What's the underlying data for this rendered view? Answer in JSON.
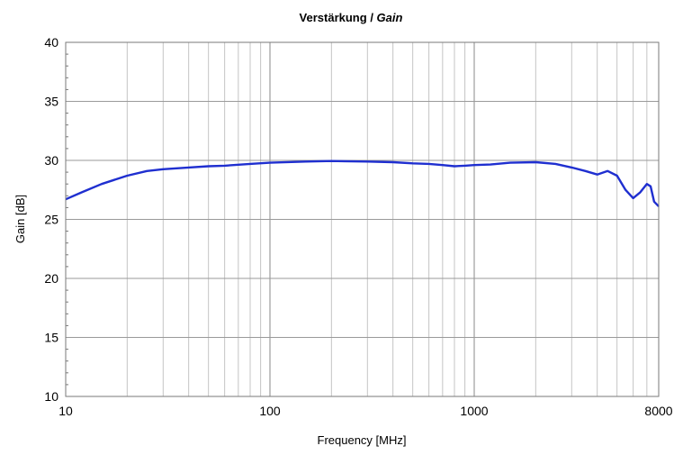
{
  "chart_data": {
    "type": "line",
    "title": "Verstärkung",
    "title_separator": " / ",
    "title_italic": "Gain",
    "xlabel": "Frequency [MHz]",
    "ylabel": "Gain [dB]",
    "xscale": "log",
    "xlim": [
      10,
      8000
    ],
    "ylim": [
      10,
      40
    ],
    "x_ticks": [
      10,
      100,
      1000,
      8000
    ],
    "x_tick_labels": [
      "10",
      "100",
      "1000",
      "8000"
    ],
    "y_ticks": [
      10,
      15,
      20,
      25,
      30,
      35,
      40
    ],
    "y_tick_labels": [
      "10",
      "15",
      "20",
      "25",
      "30",
      "35",
      "40"
    ],
    "grid": true,
    "legend": "none",
    "line_color": "#1f2fd0",
    "grid_color": "#a0a0a0",
    "series": [
      {
        "x": [
          10,
          12,
          15,
          20,
          25,
          30,
          40,
          50,
          60,
          80,
          100,
          150,
          200,
          300,
          400,
          500,
          600,
          700,
          800,
          900,
          1000,
          1200,
          1500,
          2000,
          2500,
          3000,
          3500,
          4000,
          4500,
          5000,
          5500,
          6000,
          6500,
          7000,
          7300,
          7600,
          7900,
          8000
        ],
        "y": [
          26.7,
          27.3,
          28.0,
          28.7,
          29.1,
          29.25,
          29.4,
          29.5,
          29.55,
          29.7,
          29.8,
          29.9,
          29.95,
          29.9,
          29.85,
          29.75,
          29.7,
          29.6,
          29.5,
          29.55,
          29.6,
          29.65,
          29.8,
          29.85,
          29.7,
          29.4,
          29.1,
          28.8,
          29.1,
          28.7,
          27.5,
          26.8,
          27.3,
          28.0,
          27.8,
          26.5,
          26.2,
          26.1
        ]
      }
    ]
  }
}
